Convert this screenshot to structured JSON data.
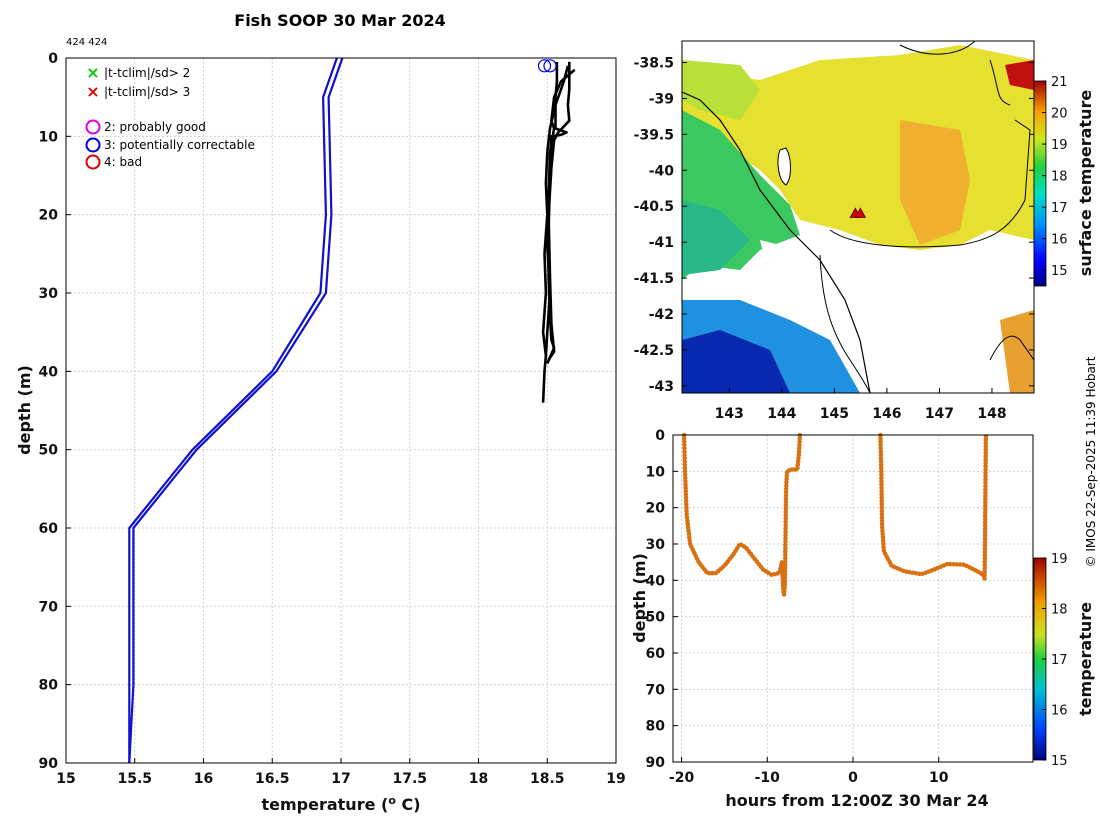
{
  "figure": {
    "title": "Fish SOOP 30 Mar 2024",
    "profile_ids": "424 424",
    "copyright": "© IMOS 22-Sep-2025 11:39 Hobart"
  },
  "colors": {
    "profile_clim": "#1010d0",
    "profile_obs": "#000000",
    "time_track": "#d97012",
    "flag_green": "#00cc00",
    "flag_red": "#dd0000",
    "flag_magenta": "#e000e0",
    "flag_blue": "#0000e0"
  },
  "chart_data": [
    {
      "id": "temperature-profile",
      "type": "line",
      "xlabel": "temperature (",
      "xlabel_sup": "o",
      "xlabel_end": " C)",
      "ylabel": "depth (m)",
      "xlim": [
        15,
        19
      ],
      "ylim": [
        0,
        90
      ],
      "y_inverted": true,
      "xticks": [
        "15",
        "15.5",
        "16",
        "16.5",
        "17",
        "17.5",
        "18",
        "18.5",
        "19"
      ],
      "yticks": [
        "0",
        "10",
        "20",
        "30",
        "40",
        "50",
        "60",
        "70",
        "80",
        "90"
      ],
      "legend": [
        {
          "symbol": "×",
          "label": "|t-tclim|/sd> 2",
          "color": "#00cc00"
        },
        {
          "symbol": "×",
          "label": "|t-tclim|/sd> 3",
          "color": "#dd0000"
        },
        {
          "symbol": "○",
          "label": "2: probably good",
          "color": "#e000e0"
        },
        {
          "symbol": "○",
          "label": "3: potentially correctable",
          "color": "#0000e0"
        },
        {
          "symbol": "○",
          "label": "4: bad",
          "color": "#dd0000"
        }
      ],
      "series": [
        {
          "name": "clim-a",
          "color": "#1010d0",
          "points": [
            [
              16.97,
              0
            ],
            [
              16.87,
              5
            ],
            [
              16.89,
              20
            ],
            [
              16.85,
              30
            ],
            [
              16.5,
              40
            ],
            [
              15.92,
              50
            ],
            [
              15.46,
              60
            ],
            [
              15.46,
              70
            ],
            [
              15.46,
              80
            ],
            [
              15.46,
              90
            ]
          ]
        },
        {
          "name": "clim-b",
          "color": "#1010d0",
          "points": [
            [
              17.01,
              0
            ],
            [
              16.91,
              5
            ],
            [
              16.93,
              20
            ],
            [
              16.89,
              30
            ],
            [
              16.53,
              40
            ],
            [
              15.95,
              50
            ],
            [
              15.49,
              60
            ],
            [
              15.49,
              70
            ],
            [
              15.49,
              80
            ],
            [
              15.46,
              90
            ]
          ]
        },
        {
          "name": "obs-1",
          "color": "#000000",
          "points": [
            [
              18.65,
              1
            ],
            [
              18.62,
              3
            ],
            [
              18.56,
              6
            ],
            [
              18.52,
              9
            ],
            [
              18.5,
              12
            ],
            [
              18.49,
              16
            ],
            [
              18.5,
              20
            ],
            [
              18.48,
              25
            ],
            [
              18.49,
              30
            ],
            [
              18.47,
              35
            ],
            [
              18.49,
              38
            ],
            [
              18.48,
              40
            ],
            [
              18.47,
              44
            ]
          ]
        },
        {
          "name": "obs-2",
          "color": "#000000",
          "points": [
            [
              18.7,
              1.5
            ],
            [
              18.6,
              3
            ],
            [
              18.55,
              5
            ],
            [
              18.53,
              8
            ],
            [
              18.55,
              9
            ],
            [
              18.52,
              12
            ],
            [
              18.51,
              18
            ],
            [
              18.5,
              24
            ],
            [
              18.52,
              30
            ],
            [
              18.5,
              35
            ],
            [
              18.49,
              38
            ]
          ]
        },
        {
          "name": "obs-3",
          "color": "#000000",
          "points": [
            [
              18.57,
              0.5
            ],
            [
              18.57,
              3
            ],
            [
              18.56,
              5
            ],
            [
              18.56,
              9
            ],
            [
              18.64,
              9.5
            ],
            [
              18.6,
              9.8
            ],
            [
              18.53,
              10
            ],
            [
              18.52,
              15
            ],
            [
              18.51,
              22
            ],
            [
              18.51,
              28
            ],
            [
              18.52,
              33
            ],
            [
              18.53,
              36
            ],
            [
              18.55,
              37
            ],
            [
              18.5,
              39
            ]
          ]
        },
        {
          "name": "obs-4",
          "color": "#000000",
          "points": [
            [
              18.66,
              0.5
            ],
            [
              18.66,
              4
            ],
            [
              18.65,
              6
            ],
            [
              18.66,
              8
            ],
            [
              18.58,
              9.5
            ],
            [
              18.55,
              10.5
            ],
            [
              18.53,
              14
            ],
            [
              18.51,
              20
            ],
            [
              18.52,
              28
            ],
            [
              18.53,
              34
            ],
            [
              18.55,
              37.5
            ],
            [
              18.51,
              38.5
            ]
          ]
        }
      ],
      "markers": [
        {
          "type": "circle",
          "color": "#0000e0",
          "x": 18.48,
          "y": 1
        },
        {
          "type": "circle",
          "color": "#0000e0",
          "x": 18.52,
          "y": 1
        }
      ]
    },
    {
      "id": "sst-map",
      "type": "heatmap",
      "xlim": [
        142.1,
        148.8
      ],
      "ylim": [
        -43.1,
        -38.2
      ],
      "xticks": [
        "143",
        "144",
        "145",
        "146",
        "147",
        "148"
      ],
      "yticks": [
        "-38.5",
        "-39",
        "-39.5",
        "-40",
        "-40.5",
        "-41",
        "-41.5",
        "-42",
        "-42.5",
        "-43"
      ],
      "colorbar": {
        "label": "surface temperature",
        "range": [
          14.5,
          21
        ],
        "ticks": [
          "15",
          "16",
          "17",
          "18",
          "19",
          "20",
          "21"
        ]
      },
      "markers": [
        {
          "type": "triangle",
          "color": "#dd0000",
          "lon": 145.4,
          "lat": -40.6
        }
      ]
    },
    {
      "id": "depth-time",
      "type": "scatter",
      "xlabel": "hours from 12:00Z 30 Mar 24",
      "ylabel": "depth (m)",
      "xlim": [
        -21,
        21
      ],
      "ylim": [
        0,
        90
      ],
      "y_inverted": true,
      "xticks": [
        "-20",
        "-10",
        "0",
        "10"
      ],
      "yticks": [
        "0",
        "10",
        "20",
        "30",
        "40",
        "50",
        "60",
        "70",
        "80",
        "90"
      ],
      "colorbar": {
        "label": "temperature",
        "range": [
          15,
          19
        ],
        "ticks": [
          "15",
          "16",
          "17",
          "18",
          "19"
        ]
      },
      "segments": [
        [
          [
            -19.7,
            0
          ],
          [
            -19.6,
            10
          ],
          [
            -19.4,
            22
          ],
          [
            -19,
            30
          ],
          [
            -18,
            35
          ],
          [
            -17,
            38
          ],
          [
            -16,
            38
          ],
          [
            -15,
            36
          ],
          [
            -14,
            33
          ],
          [
            -13.2,
            30
          ],
          [
            -12.5,
            31
          ],
          [
            -11.5,
            34
          ],
          [
            -10.5,
            37
          ],
          [
            -9.5,
            38.5
          ],
          [
            -8.6,
            38
          ],
          [
            -8.3,
            35
          ],
          [
            -8.15,
            42
          ],
          [
            -8.05,
            44
          ],
          [
            -7.95,
            41
          ],
          [
            -7.8,
            15
          ],
          [
            -7.7,
            10
          ],
          [
            -7.2,
            9.5
          ],
          [
            -6.5,
            9.5
          ],
          [
            -6.3,
            5
          ],
          [
            -6.2,
            0
          ]
        ],
        [
          [
            3.2,
            0
          ],
          [
            3.3,
            10
          ],
          [
            3.4,
            25
          ],
          [
            3.6,
            32
          ],
          [
            4.5,
            36
          ],
          [
            6,
            37.5
          ],
          [
            8,
            38.3
          ],
          [
            9.5,
            37
          ],
          [
            11,
            35.5
          ],
          [
            13,
            35.7
          ],
          [
            14.5,
            37.5
          ],
          [
            15.2,
            38.5
          ],
          [
            15.35,
            39.5
          ],
          [
            15.4,
            30
          ],
          [
            15.45,
            15
          ],
          [
            15.5,
            0
          ]
        ]
      ],
      "point_color": "#d97012"
    }
  ]
}
